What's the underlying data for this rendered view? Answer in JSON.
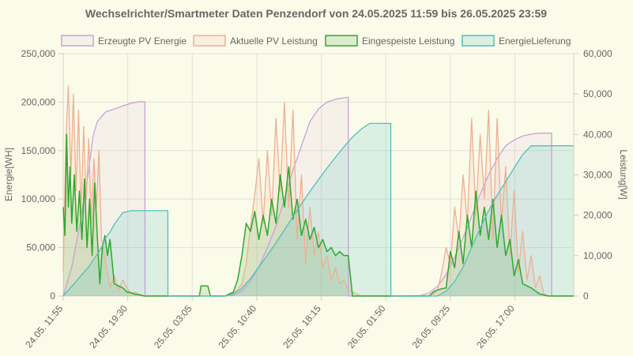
{
  "chart_data": {
    "type": "line",
    "title": "Wechselrichter/Smartmeter Daten Penzendorf von 24.05.2025 11:59 bis 26.05.2025 23:59",
    "ylabel_left": "Energie[WH]",
    "ylabel_right": "Leistung[W]",
    "ylim_left": [
      0,
      250000
    ],
    "ylim_right": [
      0,
      60000
    ],
    "yticks_left": [
      0,
      50000,
      100000,
      150000,
      200000,
      250000
    ],
    "yticks_left_labels": [
      "0",
      "50,000",
      "100,000",
      "150,000",
      "200,000",
      "250,000"
    ],
    "yticks_right": [
      0,
      10000,
      20000,
      30000,
      40000,
      50000,
      60000
    ],
    "yticks_right_labels": [
      "0",
      "10,000",
      "20,000",
      "30,000",
      "40,000",
      "50,000",
      "60,000"
    ],
    "xlim_hours": [
      0,
      60
    ],
    "xticks_hours": [
      0,
      7.583,
      15.167,
      22.75,
      30.333,
      37.917,
      45.5,
      53.083
    ],
    "xticks_labels": [
      "24.05. 11:55",
      "24.05. 19:30",
      "25.05. 03:05",
      "25.05. 10:40",
      "25.05. 18:15",
      "26.05. 01:50",
      "26.05. 09:25",
      "26.05. 17:00"
    ],
    "grid": true,
    "legend_position": "top",
    "series": [
      {
        "name": "Erzeugte PV Energie",
        "axis": "left",
        "color": "#c9a0d9",
        "fill": "rgba(201,160,217,0.10)",
        "x": [
          0,
          1,
          2,
          3,
          3.5,
          4,
          5,
          6,
          7,
          8,
          9,
          9.6,
          9.61,
          15,
          19,
          20,
          21,
          22,
          23,
          24,
          25,
          26,
          27,
          28,
          29,
          30,
          31,
          32,
          33,
          33.5,
          33.51,
          40,
          42,
          43,
          44,
          45,
          46,
          47,
          48,
          49,
          50,
          51,
          52,
          53,
          54,
          55,
          56,
          57,
          57.4,
          57.41,
          60
        ],
        "y": [
          0,
          30000,
          75000,
          130000,
          165000,
          180000,
          190000,
          193000,
          196000,
          199000,
          200500,
          200500,
          0,
          0,
          0,
          1000,
          5000,
          15000,
          30000,
          50000,
          72000,
          100000,
          130000,
          155000,
          180000,
          193000,
          200000,
          203000,
          204500,
          205000,
          0,
          0,
          500,
          3000,
          10000,
          22000,
          40000,
          60000,
          82000,
          105000,
          125000,
          142000,
          155000,
          161000,
          165000,
          167000,
          168000,
          168000,
          168000,
          0,
          0
        ]
      },
      {
        "name": "Aktuelle PV Leistung",
        "axis": "right",
        "color": "#eeb092",
        "fill": "rgba(238,176,146,0.15)",
        "x": [
          0,
          0.3,
          0.6,
          0.9,
          1.2,
          1.5,
          1.8,
          2.1,
          2.4,
          2.7,
          3.0,
          3.3,
          3.6,
          3.9,
          4.2,
          4.5,
          5,
          5.5,
          6,
          6.5,
          7,
          7.5,
          8,
          8.5,
          9,
          9.5,
          10,
          15,
          19,
          19.5,
          20,
          20.5,
          21,
          21.5,
          22,
          22.5,
          23,
          23.5,
          24,
          24.5,
          25,
          25.5,
          26,
          26.5,
          27,
          27.5,
          28,
          28.5,
          29,
          29.5,
          30,
          30.5,
          31,
          31.5,
          32,
          32.5,
          33,
          33.5,
          34,
          35,
          40,
          42,
          43,
          43.5,
          44,
          44.5,
          45,
          45.5,
          46,
          46.5,
          47,
          47.5,
          48,
          48.5,
          49,
          49.5,
          50,
          50.5,
          51,
          51.5,
          52,
          52.5,
          53,
          53.5,
          54,
          54.5,
          55,
          55.5,
          56,
          56.5,
          57,
          58,
          60
        ],
        "y": [
          6000,
          38000,
          52000,
          30000,
          50000,
          26000,
          46000,
          20000,
          42000,
          24000,
          39000,
          18000,
          34000,
          22000,
          36000,
          14000,
          8000,
          2000,
          5000,
          1500,
          4000,
          2000,
          500,
          1000,
          300,
          0,
          0,
          0,
          0,
          200,
          800,
          1500,
          3000,
          8000,
          17000,
          25000,
          34000,
          18000,
          36000,
          20000,
          44000,
          26000,
          48000,
          22000,
          46000,
          14000,
          30000,
          8000,
          22000,
          10000,
          16000,
          7000,
          10000,
          4000,
          7000,
          3000,
          4000,
          1500,
          1000,
          0,
          0,
          0,
          100,
          500,
          1500,
          6000,
          12000,
          8000,
          22000,
          14000,
          30000,
          18000,
          44000,
          20000,
          40000,
          24000,
          46000,
          14000,
          44000,
          18000,
          32000,
          10000,
          26000,
          6000,
          16000,
          4000,
          10000,
          2000,
          5000,
          500,
          0,
          0,
          0
        ]
      },
      {
        "name": "Eingespeiste Leistung",
        "axis": "right",
        "color": "#2fa82f",
        "fill": "rgba(60,170,60,0.16)",
        "x": [
          0,
          0.2,
          0.4,
          0.6,
          0.8,
          1.0,
          1.3,
          1.6,
          1.9,
          2.2,
          2.5,
          2.8,
          3.1,
          3.4,
          3.7,
          4.0,
          4.3,
          4.6,
          4.9,
          5.2,
          5.5,
          6,
          6.5,
          7,
          7.5,
          8,
          8.5,
          9,
          9.5,
          10,
          15,
          16,
          16.2,
          17,
          17.3,
          18,
          19,
          19.5,
          20,
          20.5,
          21,
          21.5,
          22,
          22.5,
          23,
          23.5,
          24,
          24.5,
          25,
          25.5,
          26,
          26.5,
          27,
          27.5,
          28,
          28.5,
          29,
          29.5,
          30,
          30.5,
          31,
          31.5,
          32,
          32.5,
          33,
          33.5,
          34,
          35,
          42,
          43,
          43.5,
          44,
          44.5,
          45,
          45.5,
          46,
          46.5,
          47,
          47.5,
          48,
          48.5,
          49,
          49.5,
          50,
          50.5,
          51,
          51.5,
          52,
          52.5,
          53,
          53.5,
          54,
          55,
          56,
          57,
          60
        ],
        "y": [
          22000,
          15000,
          40000,
          22000,
          32000,
          18000,
          30000,
          16000,
          26000,
          14000,
          29000,
          12000,
          24000,
          10000,
          28000,
          15000,
          3000,
          12000,
          15000,
          10000,
          14000,
          3000,
          2500,
          2000,
          1000,
          800,
          400,
          300,
          0,
          0,
          0,
          0,
          2500,
          2500,
          0,
          0,
          0,
          500,
          1000,
          4000,
          10000,
          18000,
          16000,
          21000,
          14000,
          20000,
          15000,
          24000,
          18000,
          30000,
          22000,
          32000,
          19000,
          24000,
          15000,
          19000,
          14000,
          17000,
          12000,
          14000,
          11000,
          12000,
          10000,
          11000,
          10000,
          10000,
          0,
          0,
          0,
          0,
          1000,
          1500,
          1800,
          2000,
          11000,
          7000,
          16000,
          8000,
          20000,
          12000,
          26000,
          15000,
          22000,
          14000,
          24000,
          12000,
          20000,
          10000,
          14000,
          5000,
          9000,
          3000,
          2000,
          500,
          0,
          0
        ]
      },
      {
        "name": "EnergieLieferung",
        "axis": "left",
        "color": "#4ec0c0",
        "fill": "rgba(78,192,192,0.18)",
        "x": [
          0,
          1,
          2,
          3,
          3.5,
          4,
          4.5,
          5,
          5.5,
          6,
          6.5,
          7,
          8,
          9,
          10,
          11,
          12,
          12.3,
          12.31,
          19,
          20,
          21,
          22,
          23,
          24,
          25,
          26,
          27,
          28,
          29,
          30,
          31,
          32,
          33,
          34,
          35,
          36,
          37,
          38,
          38.5,
          38.51,
          42,
          43,
          44,
          45,
          46,
          47,
          48,
          49,
          50,
          51,
          52,
          53,
          54,
          55,
          56,
          57,
          58,
          59,
          60
        ],
        "y": [
          0,
          10000,
          20000,
          30000,
          37000,
          43000,
          50000,
          60000,
          66000,
          74000,
          80000,
          86000,
          88000,
          88000,
          88000,
          88000,
          88000,
          88000,
          0,
          0,
          2000,
          8000,
          18000,
          30000,
          42000,
          55000,
          68000,
          82000,
          95000,
          108000,
          120000,
          132000,
          143000,
          154000,
          164000,
          172000,
          178000,
          178000,
          178000,
          178000,
          0,
          0,
          0,
          0,
          5000,
          15000,
          30000,
          50000,
          70000,
          88000,
          104000,
          118000,
          132000,
          146000,
          155000,
          155000,
          155000,
          155000,
          155000,
          155000
        ]
      }
    ]
  }
}
